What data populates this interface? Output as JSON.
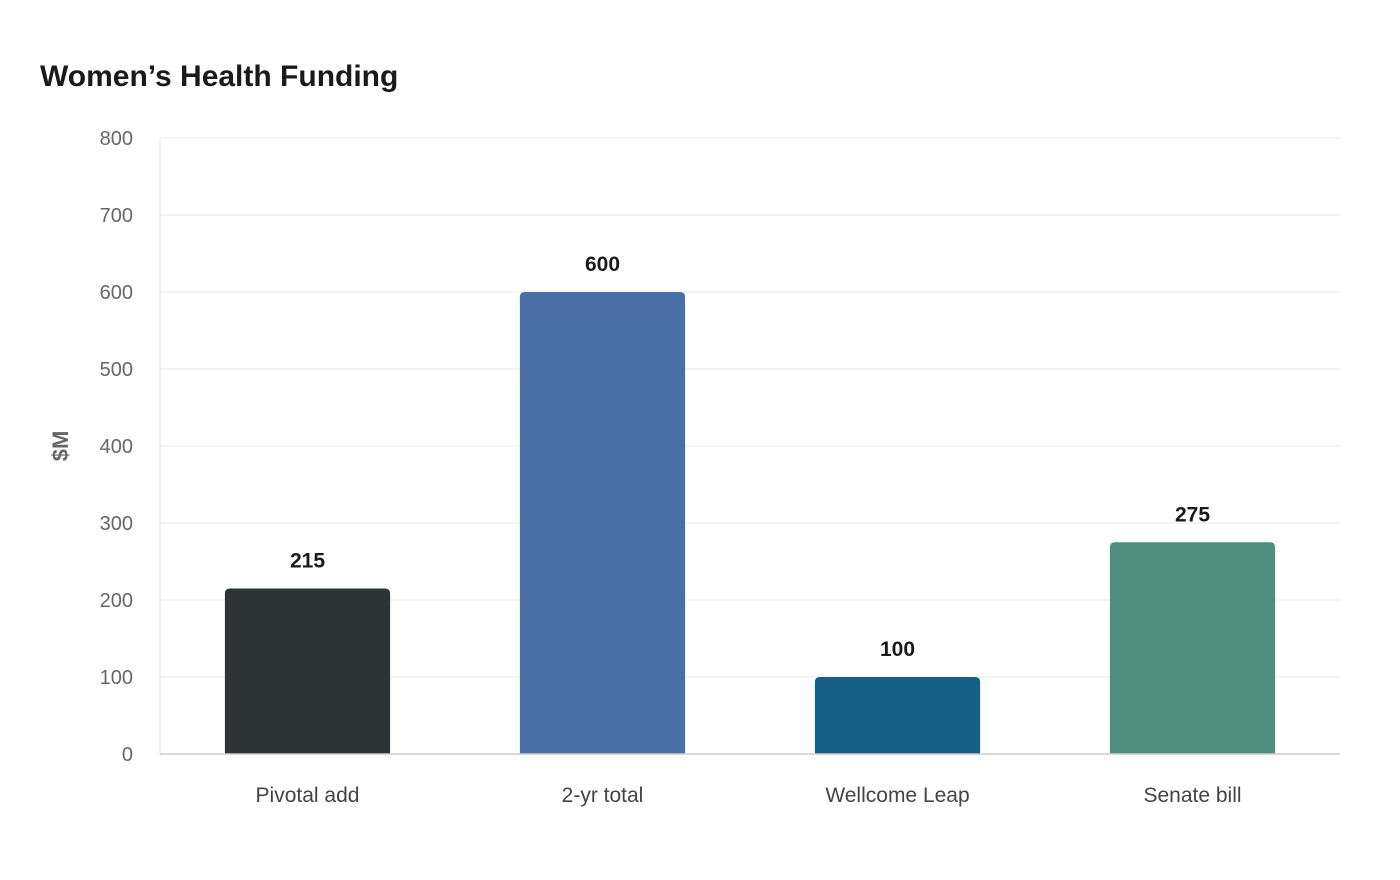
{
  "chart_data": {
    "type": "bar",
    "title": "Women’s Health Funding",
    "xlabel": "",
    "ylabel": "$M",
    "ylim": [
      0,
      800
    ],
    "yticks": [
      0,
      100,
      200,
      300,
      400,
      500,
      600,
      700,
      800
    ],
    "categories": [
      "Pivotal add",
      "2-yr total",
      "Wellcome Leap",
      "Senate bill"
    ],
    "values": [
      215,
      600,
      100,
      275
    ],
    "data_labels": [
      "215",
      "600",
      "100",
      "275"
    ],
    "colors": [
      "#2d3436",
      "#4a6fa5",
      "#166088",
      "#4f8e7c"
    ],
    "grid": true,
    "legend": "none"
  }
}
